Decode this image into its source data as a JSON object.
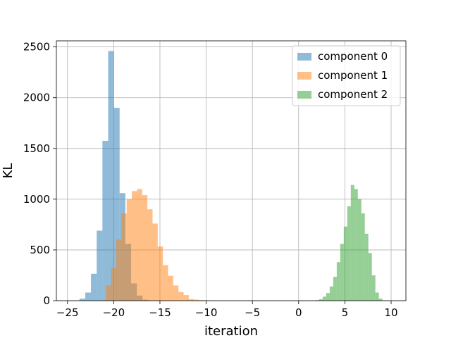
{
  "chart_data": {
    "type": "bar",
    "subtype": "histogram",
    "title": "",
    "xlabel": "iteration",
    "ylabel": "KL",
    "xlim": [
      -26.2,
      11.6
    ],
    "ylim": [
      0,
      2560
    ],
    "xticks": [
      -25,
      -20,
      -15,
      -10,
      -5,
      0,
      5,
      10
    ],
    "xtick_labels": [
      "−25",
      "−20",
      "−15",
      "−10",
      "−5",
      "0",
      "5",
      "10"
    ],
    "yticks": [
      0,
      500,
      1000,
      1500,
      2000,
      2500
    ],
    "ytick_labels": [
      "0",
      "500",
      "1000",
      "1500",
      "2000",
      "2500"
    ],
    "grid": true,
    "legend_position": "top-right",
    "bar_alpha": 0.5,
    "series": [
      {
        "name": "component 0",
        "color": "#1f77b4",
        "bin_edges": [
          -23.7,
          -23.08,
          -22.46,
          -21.84,
          -21.22,
          -20.6,
          -19.98,
          -19.36,
          -18.74,
          -18.12,
          -17.5,
          -16.88,
          -16.26
        ],
        "values": [
          20,
          80,
          265,
          690,
          1575,
          2460,
          1900,
          1060,
          560,
          170,
          50,
          10
        ]
      },
      {
        "name": "component 1",
        "color": "#ff7f0e",
        "bin_edges": [
          -21.4,
          -20.84,
          -20.28,
          -19.72,
          -19.16,
          -18.6,
          -18.04,
          -17.48,
          -16.92,
          -16.36,
          -15.8,
          -15.24,
          -14.68,
          -14.12,
          -13.56,
          -13.0,
          -12.44,
          -11.88,
          -11.32,
          -10.76,
          -10.2,
          -9.64
        ],
        "values": [
          5,
          150,
          325,
          605,
          860,
          1000,
          1080,
          1100,
          1040,
          900,
          760,
          535,
          350,
          245,
          150,
          85,
          55,
          15,
          10,
          5,
          2
        ]
      },
      {
        "name": "component 2",
        "color": "#2ca02c",
        "bin_edges": [
          1.84,
          2.22,
          2.6,
          2.98,
          3.36,
          3.74,
          4.12,
          4.5,
          4.88,
          5.26,
          5.64,
          6.02,
          6.4,
          6.78,
          7.16,
          7.54,
          7.92,
          8.3,
          8.68,
          9.06
        ],
        "values": [
          5,
          15,
          40,
          75,
          140,
          235,
          380,
          560,
          730,
          930,
          1140,
          1100,
          1000,
          860,
          660,
          470,
          250,
          80,
          20
        ]
      }
    ]
  }
}
